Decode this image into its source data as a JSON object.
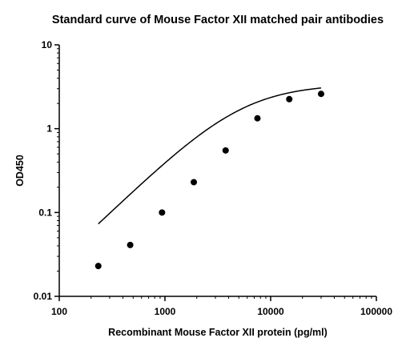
{
  "chart_data": {
    "type": "scatter",
    "title": "Standard curve of Mouse Factor XII matched pair antibodies",
    "xlabel": "Recombinant Mouse Factor XII protein (pg/ml)",
    "ylabel": "OD450",
    "x_scale": "log",
    "y_scale": "log",
    "xlim": [
      100,
      100000
    ],
    "ylim": [
      0.01,
      10
    ],
    "x_ticks": [
      100,
      1000,
      10000,
      100000
    ],
    "x_tick_labels": [
      "100",
      "1000",
      "10000",
      "100000"
    ],
    "y_ticks": [
      0.01,
      0.1,
      1,
      10
    ],
    "y_tick_labels": [
      "0.01",
      "0.1",
      "1",
      "10"
    ],
    "grid": false,
    "legend": "none",
    "points": [
      {
        "x": 234,
        "y": 0.023
      },
      {
        "x": 469,
        "y": 0.041
      },
      {
        "x": 938,
        "y": 0.1
      },
      {
        "x": 1875,
        "y": 0.23
      },
      {
        "x": 3750,
        "y": 0.55
      },
      {
        "x": 7500,
        "y": 1.33
      },
      {
        "x": 15000,
        "y": 2.25
      },
      {
        "x": 30000,
        "y": 2.6
      }
    ],
    "fit_curve": {
      "type": "4PL",
      "x_range": [
        234,
        30000
      ],
      "params": {
        "bottom": 0.0025,
        "top": 3.41,
        "ec50": 5240,
        "hill": 1.24
      }
    },
    "colors": {
      "marker": "#000000",
      "line": "#000000",
      "axis": "#000000"
    }
  }
}
